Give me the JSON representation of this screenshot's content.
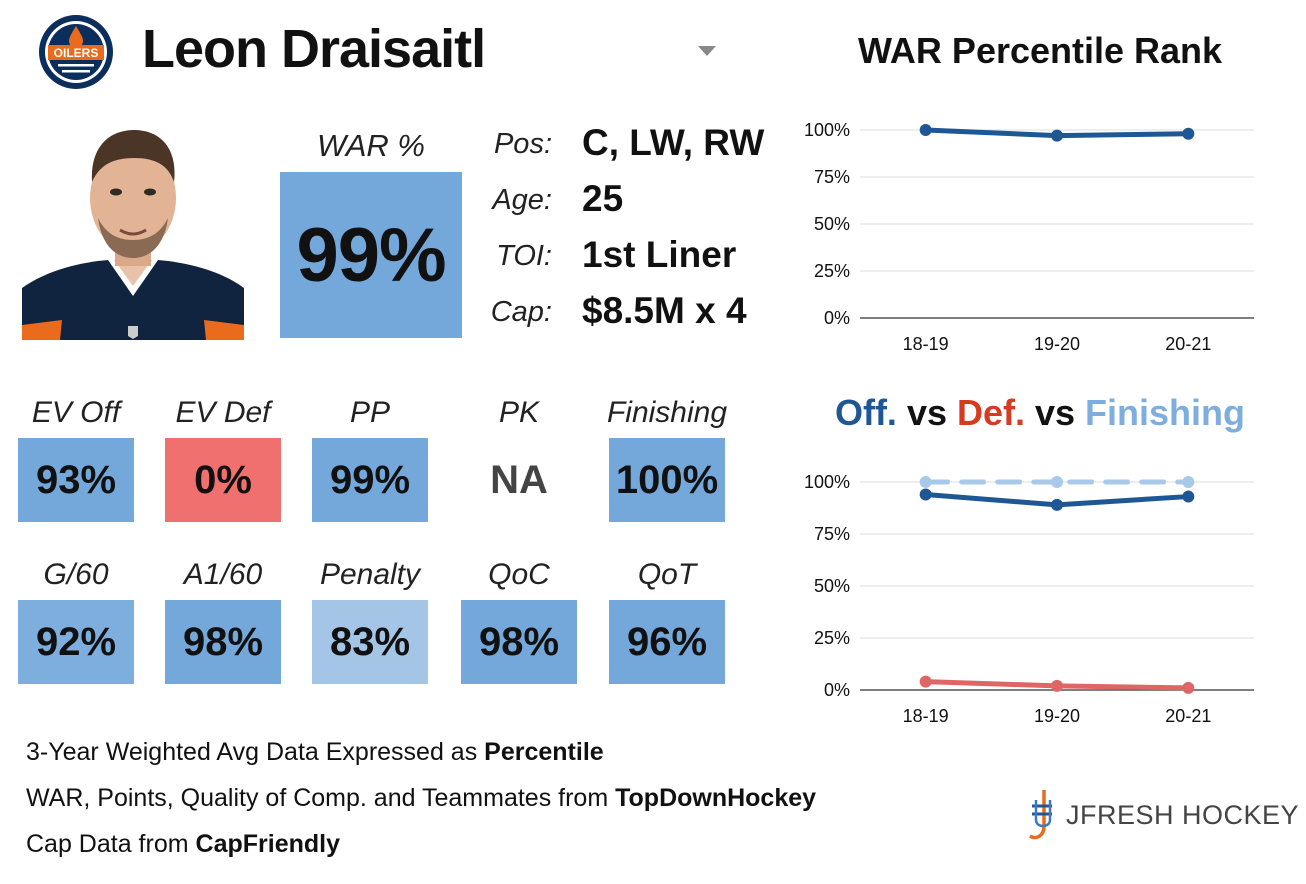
{
  "header": {
    "player_name": "Leon Draisaitl",
    "team_logo_label": "OILERS",
    "logo_icon": "oilers-logo-icon",
    "dropdown_icon": "caret-down-icon"
  },
  "war": {
    "label": "WAR %",
    "value": "99%"
  },
  "info": [
    {
      "key": "Pos:",
      "value": "C, LW, RW"
    },
    {
      "key": "Age:",
      "value": "25"
    },
    {
      "key": "TOI:",
      "value": "1st Liner"
    },
    {
      "key": "Cap:",
      "value": "$8.5M x 4"
    }
  ],
  "stats": [
    {
      "label": "EV Off",
      "value": "93%",
      "color": "#75a8da"
    },
    {
      "label": "EV Def",
      "value": "0%",
      "color": "#f07070"
    },
    {
      "label": "PP",
      "value": "99%",
      "color": "#75a8da"
    },
    {
      "label": "PK",
      "value": "NA",
      "color": ""
    },
    {
      "label": "Finishing",
      "value": "100%",
      "color": "#75a8da"
    },
    {
      "label": "G/60",
      "value": "92%",
      "color": "#7eaedd"
    },
    {
      "label": "A1/60",
      "value": "98%",
      "color": "#75a8da"
    },
    {
      "label": "Penalty",
      "value": "83%",
      "color": "#a4c5e6"
    },
    {
      "label": "QoC",
      "value": "98%",
      "color": "#75a8da"
    },
    {
      "label": "QoT",
      "value": "96%",
      "color": "#75a8da"
    }
  ],
  "chart_data": [
    {
      "type": "line",
      "title": "WAR Percentile Rank",
      "categories": [
        "18-19",
        "19-20",
        "20-21"
      ],
      "series": [
        {
          "values": [
            100,
            97,
            98
          ],
          "color": "#1f5794"
        }
      ],
      "ylim": [
        0,
        100
      ],
      "yticks": [
        "0%",
        "25%",
        "50%",
        "75%",
        "100%"
      ],
      "grid": true
    },
    {
      "type": "line",
      "title_parts": [
        {
          "text": "Off.",
          "color": "#1f5794"
        },
        {
          "text": " vs ",
          "color": "#111111"
        },
        {
          "text": "Def.",
          "color": "#d63a1f"
        },
        {
          "text": " vs ",
          "color": "#111111"
        },
        {
          "text": "Finishing",
          "color": "#7eaedd"
        }
      ],
      "categories": [
        "18-19",
        "19-20",
        "20-21"
      ],
      "series": [
        {
          "values": [
            100,
            100,
            100
          ],
          "color": "#a9c9ea",
          "dashed": true
        },
        {
          "values": [
            94,
            89,
            93
          ],
          "color": "#1f5794"
        },
        {
          "values": [
            4,
            2,
            1
          ],
          "color": "#e06666"
        }
      ],
      "ylim": [
        0,
        100
      ],
      "yticks": [
        "0%",
        "25%",
        "50%",
        "75%",
        "100%"
      ],
      "grid": true
    }
  ],
  "footer": {
    "line1_prefix": "3-Year Weighted Avg Data Expressed as ",
    "line1_bold": "Percentile",
    "line2_prefix": "WAR, Points, Quality of Comp. and Teammates from ",
    "line2_bold": "TopDownHockey",
    "line3_prefix": "Cap Data from ",
    "line3_bold": "CapFriendly"
  },
  "brand": {
    "text": "JFRESH HOCKEY",
    "icon": "jfresh-logo-icon"
  }
}
